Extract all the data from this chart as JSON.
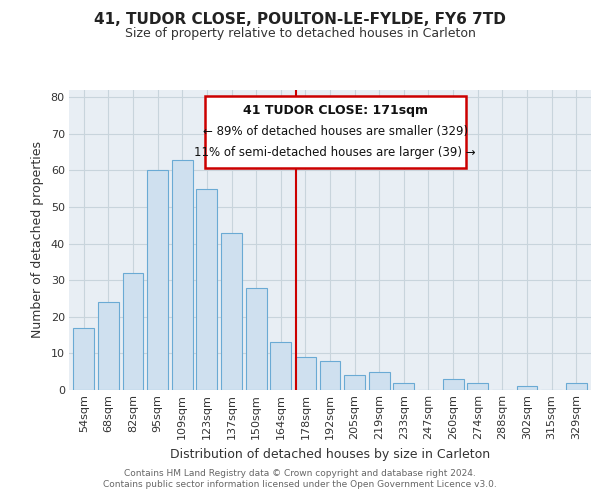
{
  "title": "41, TUDOR CLOSE, POULTON-LE-FYLDE, FY6 7TD",
  "subtitle": "Size of property relative to detached houses in Carleton",
  "xlabel": "Distribution of detached houses by size in Carleton",
  "ylabel": "Number of detached properties",
  "footer_line1": "Contains HM Land Registry data © Crown copyright and database right 2024.",
  "footer_line2": "Contains public sector information licensed under the Open Government Licence v3.0.",
  "bar_labels": [
    "54sqm",
    "68sqm",
    "82sqm",
    "95sqm",
    "109sqm",
    "123sqm",
    "137sqm",
    "150sqm",
    "164sqm",
    "178sqm",
    "192sqm",
    "205sqm",
    "219sqm",
    "233sqm",
    "247sqm",
    "260sqm",
    "274sqm",
    "288sqm",
    "302sqm",
    "315sqm",
    "329sqm"
  ],
  "bar_values": [
    17,
    24,
    32,
    60,
    63,
    55,
    43,
    28,
    13,
    9,
    8,
    4,
    5,
    2,
    0,
    3,
    2,
    0,
    1,
    0,
    2
  ],
  "bar_color": "#cfe0ef",
  "bar_edge_color": "#6aaad4",
  "annotation_box_facecolor": "#ffffff",
  "annotation_box_edgecolor": "#cc0000",
  "annotation_title": "41 TUDOR CLOSE: 171sqm",
  "annotation_line1": "← 89% of detached houses are smaller (329)",
  "annotation_line2": "11% of semi-detached houses are larger (39) →",
  "vline_color": "#cc0000",
  "vline_x_index": 8.62,
  "ylim": [
    0,
    82
  ],
  "yticks": [
    0,
    10,
    20,
    30,
    40,
    50,
    60,
    70,
    80
  ],
  "fig_bg_color": "#ffffff",
  "plot_bg_color": "#e8eef4",
  "grid_color": "#c8d4dc",
  "title_fontsize": 11,
  "subtitle_fontsize": 9,
  "tick_fontsize": 8,
  "label_fontsize": 9,
  "footer_fontsize": 6.5
}
